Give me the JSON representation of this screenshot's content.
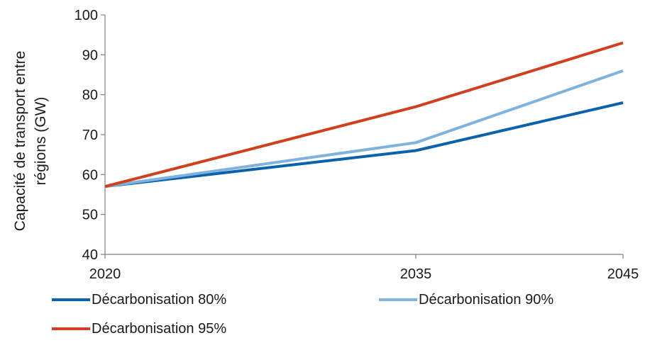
{
  "chart_data": {
    "type": "line",
    "title": "",
    "xlabel": "",
    "ylabel": "Capacité de transport entre régions (GW)",
    "ylabel_lines": [
      "Capacité de transport entre",
      "régions (GW)"
    ],
    "x": [
      "2020",
      "2035",
      "2045"
    ],
    "x_numeric": [
      2020,
      2035,
      2045
    ],
    "ylim": [
      40,
      100
    ],
    "yticks": [
      "40",
      "50",
      "60",
      "70",
      "80",
      "90",
      "100"
    ],
    "grid": false,
    "legend_position": "bottom",
    "series": [
      {
        "name": "Décarbonisation 80%",
        "values": [
          57,
          66,
          78
        ],
        "color": "#0a62ad"
      },
      {
        "name": "Décarbonisation 90%",
        "values": [
          57,
          68,
          86
        ],
        "color": "#7fb2dc"
      },
      {
        "name": "Décarbonisation 95%",
        "values": [
          57,
          77,
          93
        ],
        "color": "#d1401e"
      }
    ]
  }
}
